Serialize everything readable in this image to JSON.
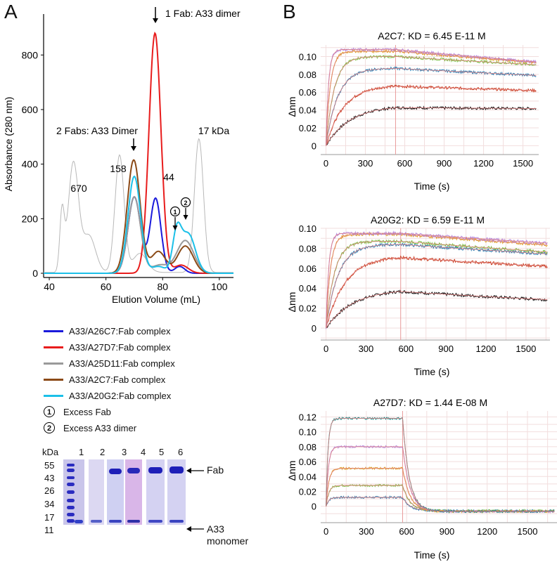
{
  "panel_labels": {
    "a": "A",
    "b": "B"
  },
  "chart_data": [
    {
      "id": "sec",
      "type": "line",
      "xlabel": "Elution Volume (mL)",
      "ylabel": "Absorbance (280 nm)",
      "xlim": [
        38,
        105
      ],
      "ylim": [
        0,
        950
      ],
      "xticks": [
        40,
        60,
        80,
        100
      ],
      "yticks": [
        0,
        200,
        400,
        600,
        800
      ],
      "grid": false,
      "series": [
        {
          "name": "A33/A26C7:Fab complex",
          "color": "#1a1adb",
          "peaks": [
            [
              70,
              280,
              2.2
            ],
            [
              77.5,
              275,
              1.9
            ],
            [
              86,
              25,
              1.8
            ]
          ]
        },
        {
          "name": "A33/A27D7:Fab complex",
          "color": "#e81c1c",
          "peaks": [
            [
              77.3,
              880,
              2.1
            ],
            [
              86.5,
              30,
              2.5
            ]
          ]
        },
        {
          "name": "A33/A25D11:Fab complex",
          "color": "#9a9a9a",
          "peaks": [
            [
              70,
              280,
              2.2
            ],
            [
              79,
              30,
              3
            ],
            [
              88,
              120,
              3
            ]
          ]
        },
        {
          "name": "A33/A2C7:Fab complex",
          "color": "#8b4a17",
          "peaks": [
            [
              69.8,
              415,
              2.3
            ],
            [
              78.5,
              80,
              2.5
            ],
            [
              88,
              100,
              2.8
            ]
          ]
        },
        {
          "name": "A33/A20G2:Fab complex",
          "color": "#1cc0e8",
          "peaks": [
            [
              70,
              355,
              2.2
            ],
            [
              78.5,
              25,
              2.5
            ],
            [
              85,
              140,
              1.5
            ],
            [
              89,
              145,
              2.5
            ]
          ]
        }
      ],
      "standards_peaks": [
        [
          44.5,
          215,
          0.8
        ],
        [
          48.5,
          400,
          1.8
        ],
        [
          54,
          135,
          2.3
        ],
        [
          64.8,
          430,
          1.6
        ],
        [
          72,
          70,
          2.5
        ],
        [
          92.8,
          490,
          1.6
        ]
      ],
      "annotations": {
        "670": "670",
        "158": "158",
        "44": "44",
        "17kda": "17 kDa",
        "one_fab": "1 Fab: A33 dimer",
        "two_fabs": "2 Fabs: A33 Dimer",
        "marker1": "1",
        "marker2": "2"
      }
    },
    {
      "id": "bli_a2c7",
      "type": "line",
      "title": "A2C7: KD = 6.45 E-11 M",
      "xlabel": "Time (s)",
      "ylabel": "Δnm",
      "xlim": [
        -40,
        1620
      ],
      "ylim": [
        -0.01,
        0.113
      ],
      "xticks": [
        0,
        300,
        600,
        900,
        1200,
        1500
      ],
      "yticks": [
        0,
        0.02,
        0.04,
        0.06,
        0.08,
        0.1
      ],
      "ytick_labels": [
        "0",
        "0.02",
        "0.04",
        "0.06",
        "0.08",
        "0.10"
      ],
      "grid": true,
      "dissociation_start": 530,
      "traces": [
        {
          "color": "#111111",
          "rmax": 0.045,
          "kobs": 0.0055,
          "koff": 2e-05
        },
        {
          "color": "#c83c1e",
          "rmax": 0.068,
          "kobs": 0.0075,
          "koff": 7e-05
        },
        {
          "color": "#2e7fb3",
          "rmax": 0.087,
          "kobs": 0.011,
          "koff": 9e-05
        },
        {
          "color": "#7bc043",
          "rmax": 0.1,
          "kobs": 0.016,
          "koff": 9e-05
        },
        {
          "color": "#e0a429",
          "rmax": 0.106,
          "kobs": 0.03,
          "koff": 0.00012
        },
        {
          "color": "#b58be3",
          "rmax": 0.108,
          "kobs": 0.05,
          "koff": 0.00013
        }
      ]
    },
    {
      "id": "bli_a20g2",
      "type": "line",
      "title": "A20G2: KD = 6.59 E-11 M",
      "xlabel": "Time (s)",
      "ylabel": "Δnm",
      "xlim": [
        -40,
        1680
      ],
      "ylim": [
        -0.012,
        0.1
      ],
      "xticks": [
        0,
        300,
        600,
        900,
        1200,
        1500
      ],
      "yticks": [
        0,
        0.02,
        0.04,
        0.06,
        0.08,
        0.1
      ],
      "ytick_labels": [
        "0",
        "0.02",
        "0.04",
        "0.06",
        "0.08",
        "0.10"
      ],
      "grid": true,
      "dissociation_start": 560,
      "traces": [
        {
          "color": "#111111",
          "rmax": 0.039,
          "kobs": 0.005,
          "koff": 0.00023
        },
        {
          "color": "#c83c1e",
          "rmax": 0.072,
          "kobs": 0.007,
          "koff": 0.00012
        },
        {
          "color": "#2e7fb3",
          "rmax": 0.084,
          "kobs": 0.011,
          "koff": 0.00011
        },
        {
          "color": "#7bc043",
          "rmax": 0.087,
          "kobs": 0.016,
          "koff": 0.00012
        },
        {
          "color": "#e0a429",
          "rmax": 0.094,
          "kobs": 0.03,
          "koff": 0.00011
        },
        {
          "color": "#b58be3",
          "rmax": 0.095,
          "kobs": 0.05,
          "koff": 0.0001
        }
      ]
    },
    {
      "id": "bli_a27d7",
      "type": "line",
      "title": "A27D7: KD = 1.44 E-08 M",
      "xlabel": "Time (s)",
      "ylabel": "Δnm",
      "xlim": [
        -40,
        1720
      ],
      "ylim": [
        -0.022,
        0.128
      ],
      "xticks": [
        0,
        300,
        600,
        900,
        1200,
        1500
      ],
      "yticks": [
        0,
        0.02,
        0.04,
        0.06,
        0.08,
        0.1,
        0.12
      ],
      "ytick_labels": [
        "0",
        "0.02",
        "0.04",
        "0.06",
        "0.08",
        "0.10",
        "0.12"
      ],
      "grid": true,
      "dissociation_start": 570,
      "traces": [
        {
          "color": "#2e7fb3",
          "rmax": 0.012,
          "kobs": 0.05,
          "koff": 0.018,
          "floor": -0.006
        },
        {
          "color": "#7bc043",
          "rmax": 0.028,
          "kobs": 0.05,
          "koff": 0.018,
          "floor": -0.006
        },
        {
          "color": "#e0a429",
          "rmax": 0.051,
          "kobs": 0.05,
          "koff": 0.018,
          "floor": -0.007
        },
        {
          "color": "#b58be3",
          "rmax": 0.08,
          "kobs": 0.06,
          "koff": 0.018,
          "floor": -0.007
        },
        {
          "color": "#1f8a8a",
          "rmax": 0.118,
          "kobs": 0.07,
          "koff": 0.02,
          "floor": -0.007
        }
      ]
    }
  ],
  "legend": {
    "series": [
      {
        "label": "A33/A26C7:Fab complex",
        "color": "#1a1adb"
      },
      {
        "label": "A33/A27D7:Fab complex",
        "color": "#e81c1c"
      },
      {
        "label": "A33/A25D11:Fab complex",
        "color": "#9a9a9a"
      },
      {
        "label": "A33/A2C7:Fab complex",
        "color": "#8b4a17"
      },
      {
        "label": "A33/A20G2:Fab complex",
        "color": "#1cc0e8"
      }
    ],
    "markers": [
      {
        "symbol": "1",
        "label": "Excess Fab"
      },
      {
        "symbol": "2",
        "label": "Excess A33 dimer"
      }
    ]
  },
  "gel": {
    "kda_label": "kDa",
    "lanes": [
      "1",
      "2",
      "3",
      "4",
      "5",
      "6"
    ],
    "mw_markers": [
      "55",
      "43",
      "26",
      "34",
      "17",
      "11"
    ],
    "fab_label": "Fab",
    "monomer_label": "A33\nmonomer",
    "colors": {
      "ladder_bg": "#c9c5ea",
      "band": "#1e1fb8",
      "lane_bg": "#d8d4f0",
      "lane_pink": "#d9b6e8"
    }
  }
}
